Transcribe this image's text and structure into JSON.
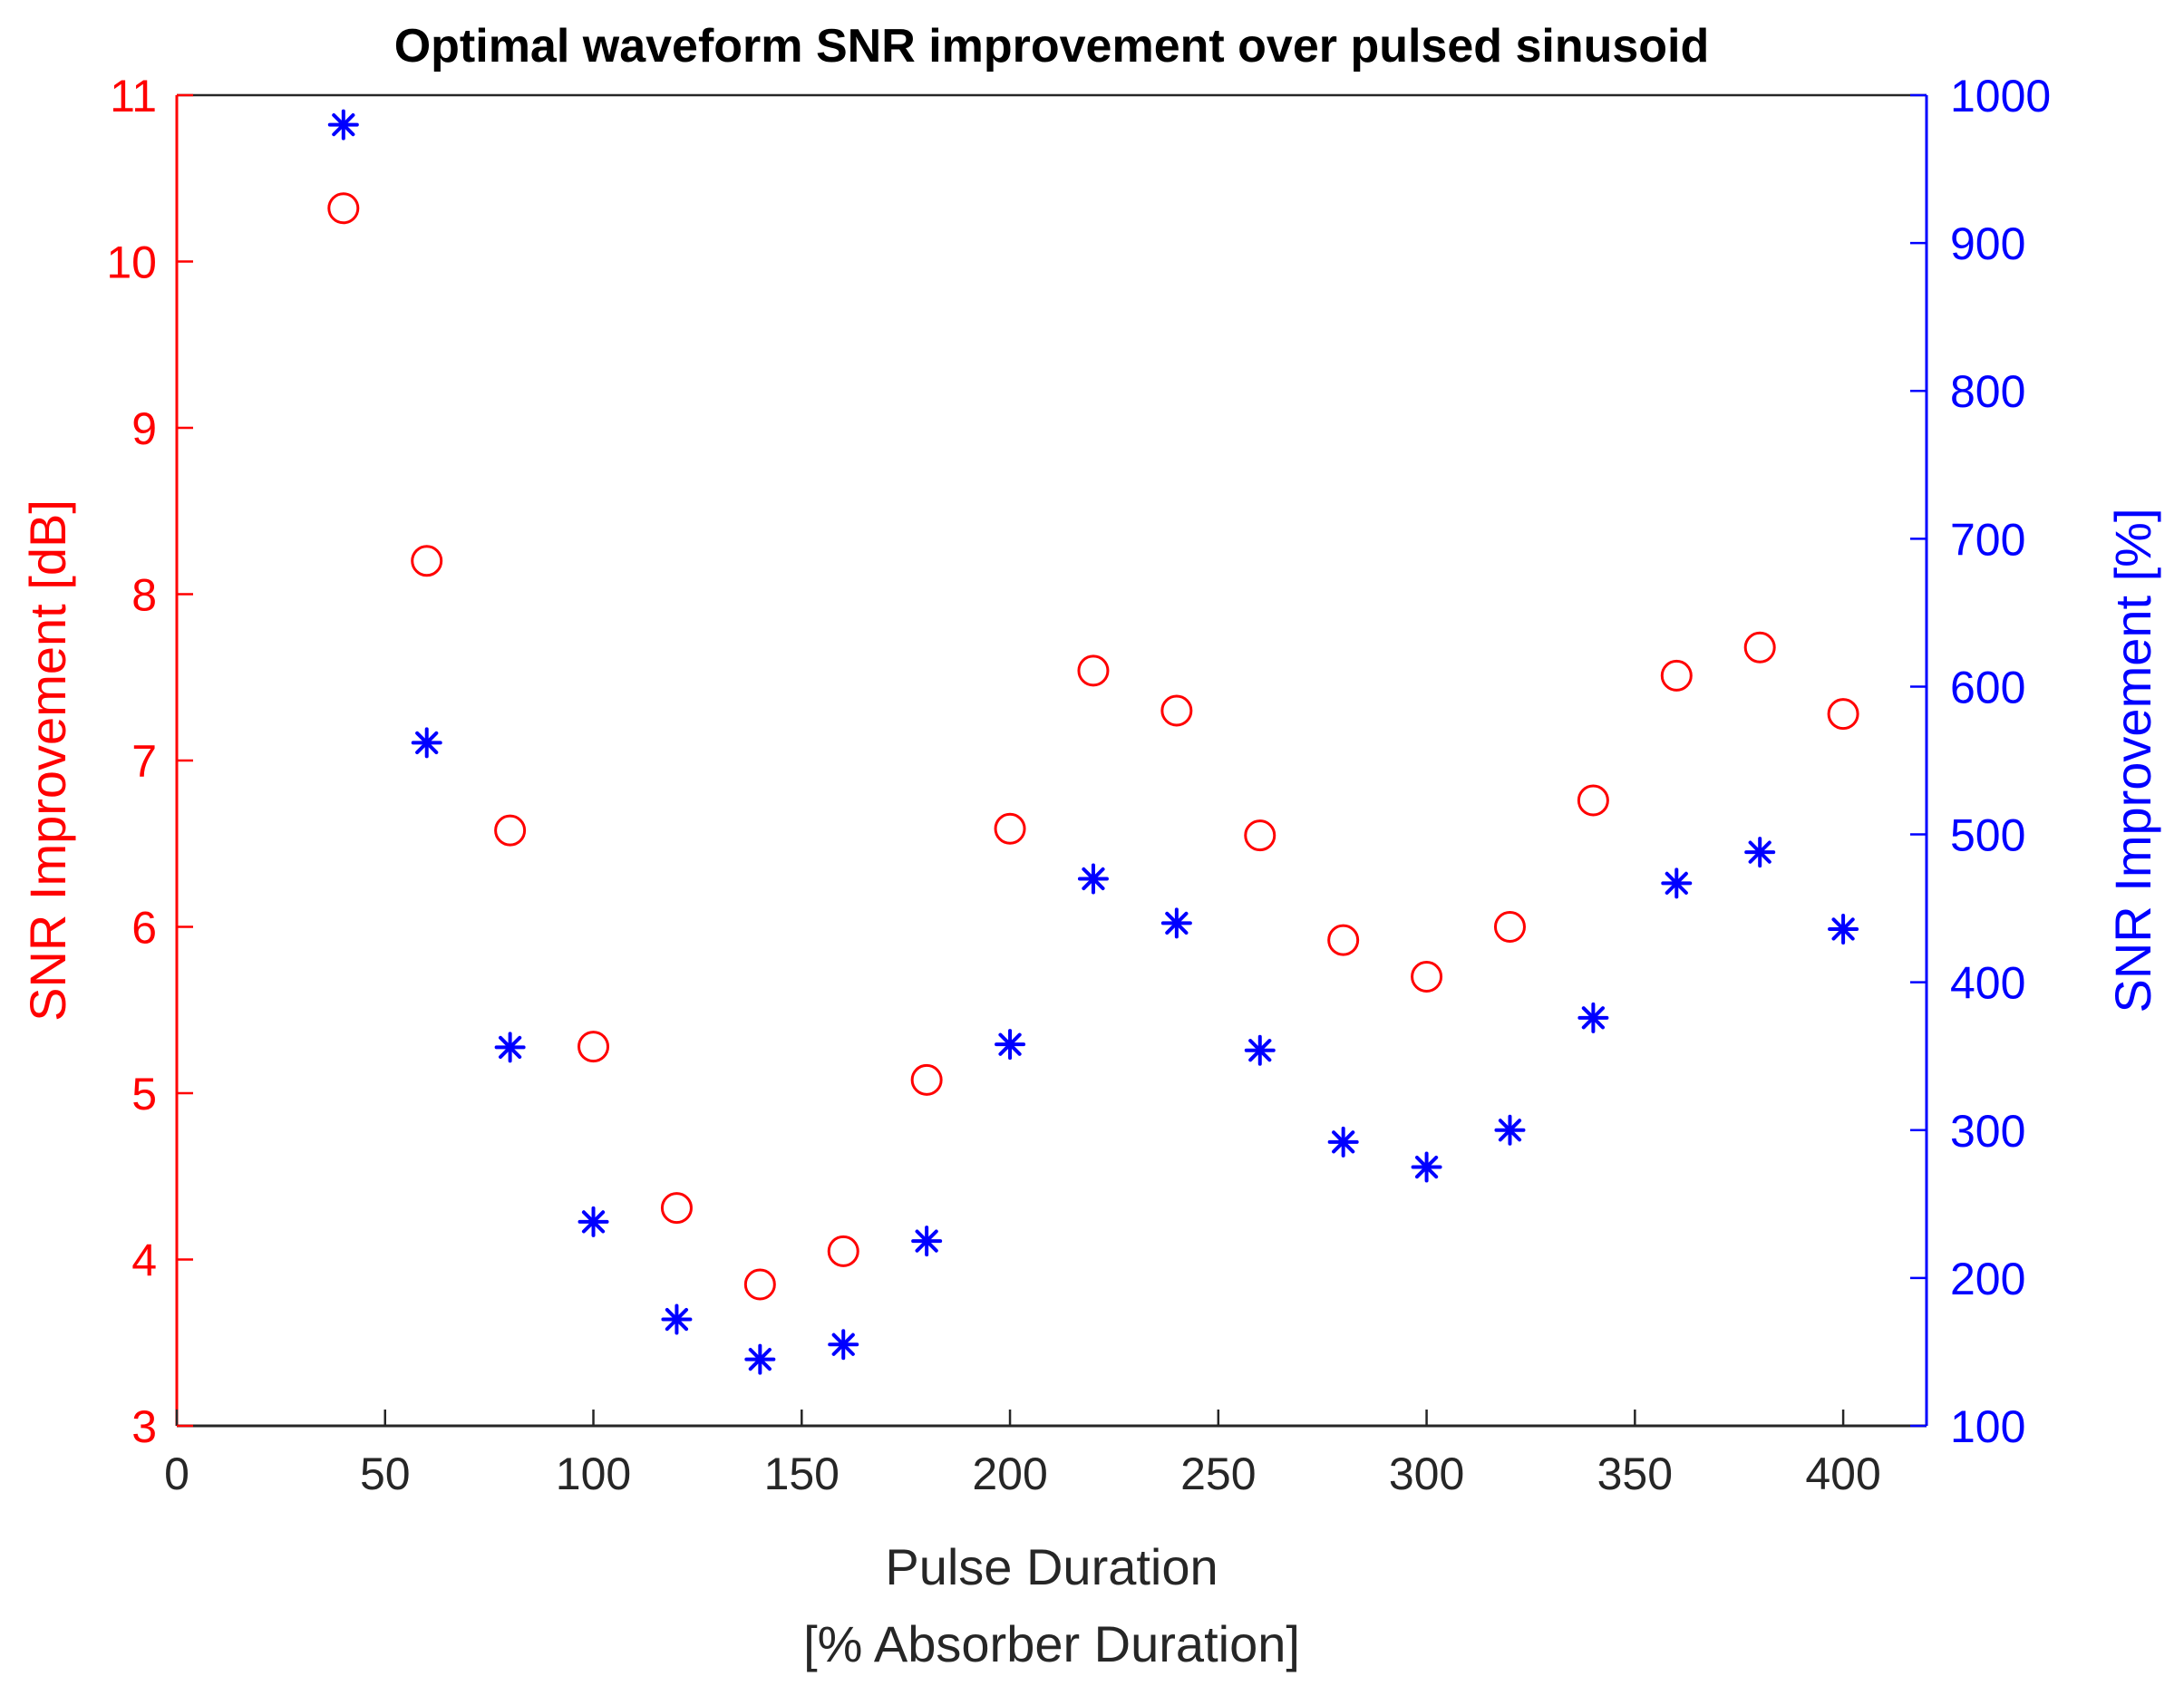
{
  "chart_data": {
    "type": "scatter",
    "title": "Optimal waveform SNR improvement over pulsed sinusoid",
    "xlabel_lines": [
      "Pulse Duration",
      "[% Absorber Duration]"
    ],
    "xlim": [
      0,
      420
    ],
    "xticks": [
      0,
      50,
      100,
      150,
      200,
      250,
      300,
      350,
      400
    ],
    "xtick_labels": [
      "0",
      "50",
      "100",
      "150",
      "200",
      "250",
      "300",
      "350",
      "400"
    ],
    "left_axis": {
      "label": "SNR Improvement [dB]",
      "color": "#ff0000",
      "ylim": [
        3,
        11
      ],
      "ticks": [
        3,
        4,
        5,
        6,
        7,
        8,
        9,
        10,
        11
      ],
      "tick_labels": [
        "3",
        "4",
        "5",
        "6",
        "7",
        "8",
        "9",
        "10",
        "11"
      ]
    },
    "right_axis": {
      "label": "SNR Improvement [%]",
      "color": "#0000ff",
      "ylim": [
        100,
        1000
      ],
      "ticks": [
        100,
        200,
        300,
        400,
        500,
        600,
        700,
        800,
        900,
        1000
      ],
      "tick_labels": [
        "100",
        "200",
        "300",
        "400",
        "500",
        "600",
        "700",
        "800",
        "900",
        "1000"
      ]
    },
    "series": [
      {
        "name": "SNR Improvement [dB]",
        "axis": "left",
        "marker": "circle",
        "color": "#ff0000",
        "x": [
          40,
          60,
          80,
          100,
          120,
          140,
          160,
          180,
          200,
          220,
          240,
          260,
          280,
          300,
          320,
          340,
          360,
          380,
          400
        ],
        "y": [
          10.32,
          8.2,
          6.58,
          5.28,
          4.31,
          3.85,
          4.05,
          5.08,
          6.59,
          7.54,
          7.3,
          6.55,
          5.92,
          5.7,
          6.0,
          6.76,
          7.51,
          7.68,
          7.28
        ]
      },
      {
        "name": "SNR Improvement [%]",
        "axis": "right",
        "marker": "asterisk",
        "color": "#0000ff",
        "x": [
          40,
          60,
          80,
          100,
          120,
          140,
          160,
          180,
          200,
          220,
          240,
          260,
          280,
          300,
          320,
          340,
          360,
          380,
          400
        ],
        "y": [
          980,
          562,
          356,
          238,
          172,
          145,
          155,
          225,
          358,
          470,
          440,
          354,
          292,
          275,
          300,
          376,
          467,
          488,
          436
        ]
      }
    ]
  }
}
